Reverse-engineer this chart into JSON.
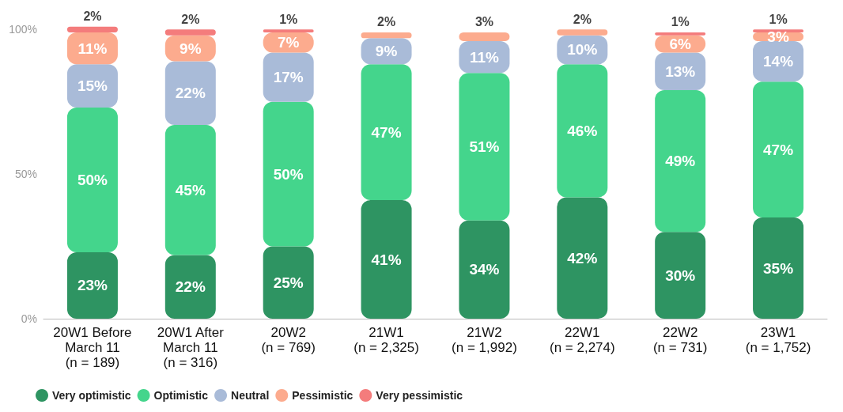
{
  "chart_data": {
    "type": "bar",
    "stacked": true,
    "categories": [
      "20W1 Before\nMarch 11\n(n = 189)",
      "20W1 After\nMarch 11\n(n = 316)",
      "20W2\n(n = 769)",
      "21W1\n(n = 2,325)",
      "21W2\n(n = 1,992)",
      "22W1\n(n = 2,274)",
      "22W2\n(n = 731)",
      "23W1\n(n = 1,752)"
    ],
    "series": [
      {
        "name": "Very optimistic",
        "color": "#2e9462",
        "values": [
          23,
          22,
          25,
          41,
          34,
          42,
          30,
          35
        ],
        "value_labels": [
          "23%",
          "22%",
          "25%",
          "41%",
          "34%",
          "42%",
          "30%",
          "35%"
        ]
      },
      {
        "name": "Optimistic",
        "color": "#44d58c",
        "values": [
          50,
          45,
          50,
          47,
          51,
          46,
          49,
          47
        ],
        "value_labels": [
          "50%",
          "45%",
          "50%",
          "47%",
          "51%",
          "46%",
          "49%",
          "47%"
        ]
      },
      {
        "name": "Neutral",
        "color": "#a9bbd8",
        "values": [
          15,
          22,
          17,
          9,
          11,
          10,
          13,
          14
        ],
        "value_labels": [
          "15%",
          "22%",
          "17%",
          "9%",
          "11%",
          "10%",
          "13%",
          "14%"
        ]
      },
      {
        "name": "Pessimistic",
        "color": "#fcab8e",
        "values": [
          11,
          9,
          7,
          2,
          3,
          2,
          6,
          3
        ],
        "value_labels": [
          "11%",
          "9%",
          "7%",
          "2%",
          "3%",
          "2%",
          "6%",
          "3%"
        ]
      },
      {
        "name": "Very pessimistic",
        "color": "#f47c7c",
        "values": [
          2,
          2,
          1,
          null,
          null,
          null,
          1,
          1
        ],
        "value_labels": [
          "2%",
          "2%",
          "1%",
          null,
          null,
          null,
          "1%",
          "1%"
        ]
      }
    ],
    "ylim": [
      0,
      102
    ],
    "yticks": [
      {
        "value": 0,
        "label": "0%"
      },
      {
        "value": 50,
        "label": "50%"
      },
      {
        "value": 100,
        "label": "100%"
      }
    ],
    "grid": false,
    "legend": "bottom left"
  }
}
